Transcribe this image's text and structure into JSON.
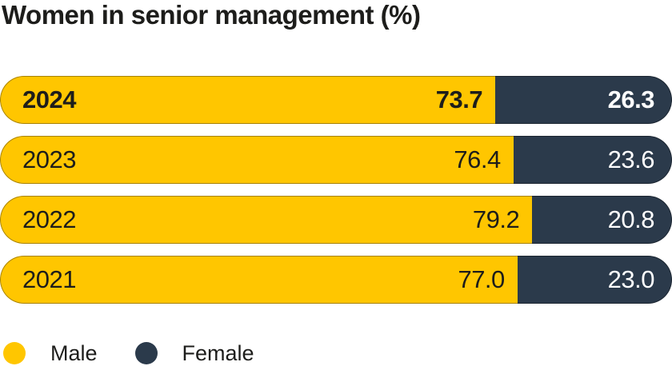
{
  "title": "Women in senior management (%)",
  "colors": {
    "male": "#ffc600",
    "female": "#2b3a4b",
    "text_dark": "#1d1d1b",
    "text_light": "#ffffff",
    "background": "#ffffff"
  },
  "rows": [
    {
      "year": "2024",
      "male_label": "73.7",
      "female_label": "26.3",
      "male_pct": 73.7,
      "emphasis": true
    },
    {
      "year": "2023",
      "male_label": "76.4",
      "female_label": "23.6",
      "male_pct": 76.4,
      "emphasis": false
    },
    {
      "year": "2022",
      "male_label": "79.2",
      "female_label": "20.8",
      "male_pct": 79.2,
      "emphasis": false
    },
    {
      "year": "2021",
      "male_label": "77.0",
      "female_label": "23.0",
      "male_pct": 77.0,
      "emphasis": false
    }
  ],
  "legend": [
    {
      "label": "Male",
      "color": "#ffc600"
    },
    {
      "label": "Female",
      "color": "#2b3a4b"
    }
  ],
  "chart_data": {
    "type": "bar",
    "orientation": "horizontal-stacked",
    "title": "Women in senior management (%)",
    "unit": "%",
    "categories": [
      "2024",
      "2023",
      "2022",
      "2021"
    ],
    "series": [
      {
        "name": "Male",
        "color": "#ffc600",
        "values": [
          73.7,
          76.4,
          79.2,
          77.0
        ]
      },
      {
        "name": "Female",
        "color": "#2b3a4b",
        "values": [
          26.3,
          23.6,
          20.8,
          23.0
        ]
      }
    ],
    "xlim": [
      0,
      100
    ],
    "grid": false,
    "legend_position": "bottom-left",
    "highlighted_category": "2024",
    "value_labels": "inside-end"
  }
}
